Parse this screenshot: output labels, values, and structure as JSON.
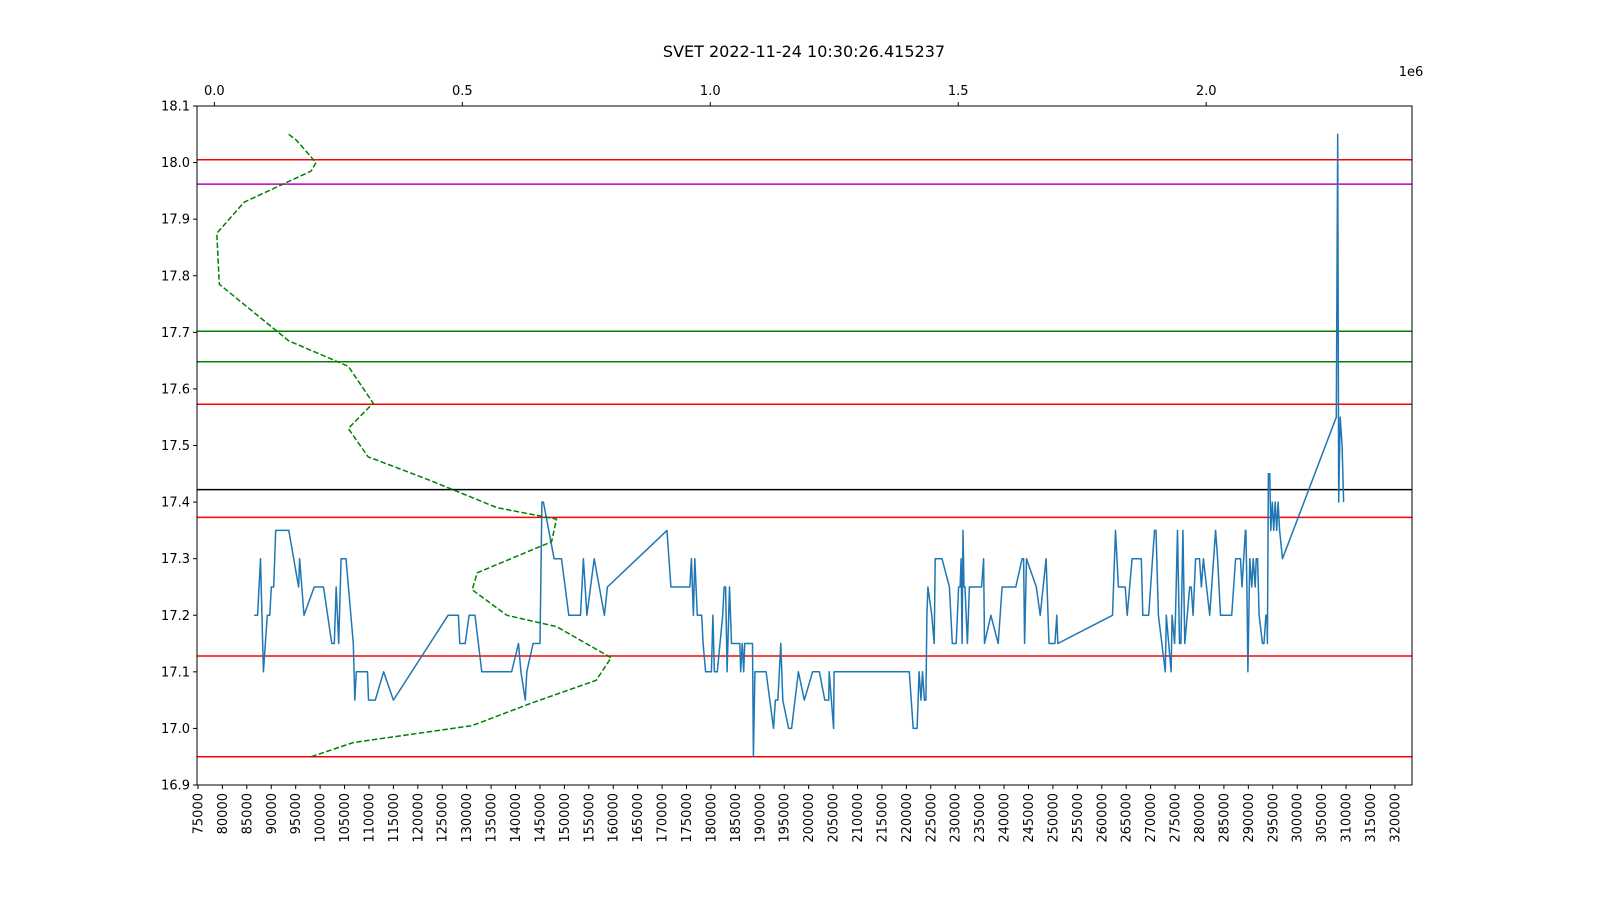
{
  "chart_data": {
    "type": "line",
    "title": "SVET 2022-11-24 10:30:26.415237",
    "xlabel": "",
    "ylabel": "",
    "ylim": [
      16.9,
      18.1
    ],
    "yticks": [
      "16.9",
      "17.0",
      "17.1",
      "17.2",
      "17.3",
      "17.4",
      "17.5",
      "17.6",
      "17.7",
      "17.8",
      "17.9",
      "18.0",
      "18.1"
    ],
    "xlim": [
      74800,
      323500
    ],
    "xticks": [
      "75000",
      "80000",
      "85000",
      "90000",
      "95000",
      "100000",
      "105000",
      "110000",
      "115000",
      "120000",
      "125000",
      "130000",
      "135000",
      "140000",
      "145000",
      "150000",
      "155000",
      "160000",
      "165000",
      "170000",
      "175000",
      "180000",
      "185000",
      "190000",
      "195000",
      "200000",
      "205000",
      "210000",
      "215000",
      "220000",
      "225000",
      "230000",
      "235000",
      "240000",
      "245000",
      "250000",
      "255000",
      "260000",
      "265000",
      "270000",
      "275000",
      "280000",
      "285000",
      "290000",
      "295000",
      "300000",
      "305000",
      "310000",
      "315000",
      "320000"
    ],
    "top_axis": {
      "xlim": [
        -35000,
        2415000
      ],
      "ticks": [
        "0.0",
        "0.5",
        "1.0",
        "1.5",
        "2.0"
      ],
      "tick_values": [
        0,
        500000,
        1000000,
        1500000,
        2000000
      ],
      "multiplier": "1e6"
    },
    "hlines": [
      {
        "y": 18.005,
        "color": "#ff0000"
      },
      {
        "y": 17.962,
        "color": "#bf00bf"
      },
      {
        "y": 17.702,
        "color": "#008000"
      },
      {
        "y": 17.648,
        "color": "#008000"
      },
      {
        "y": 17.573,
        "color": "#ff0000"
      },
      {
        "y": 17.422,
        "color": "#000000"
      },
      {
        "y": 17.373,
        "color": "#ff0000"
      },
      {
        "y": 17.128,
        "color": "#ff0000"
      },
      {
        "y": 16.95,
        "color": "#ff0000"
      }
    ],
    "series": [
      {
        "style": "solid",
        "color": "#1f77b4",
        "points": [
          [
            86500,
            17.2
          ],
          [
            87200,
            17.2
          ],
          [
            87800,
            17.3
          ],
          [
            88400,
            17.1
          ],
          [
            89200,
            17.2
          ],
          [
            89700,
            17.2
          ],
          [
            90000,
            17.25
          ],
          [
            90500,
            17.25
          ],
          [
            90900,
            17.35
          ],
          [
            93600,
            17.35
          ],
          [
            95600,
            17.25
          ],
          [
            95800,
            17.3
          ],
          [
            96700,
            17.2
          ],
          [
            98800,
            17.25
          ],
          [
            100700,
            17.25
          ],
          [
            102400,
            17.15
          ],
          [
            102900,
            17.15
          ],
          [
            103300,
            17.25
          ],
          [
            103800,
            17.15
          ],
          [
            104300,
            17.3
          ],
          [
            105300,
            17.3
          ],
          [
            106800,
            17.15
          ],
          [
            107100,
            17.05
          ],
          [
            107400,
            17.1
          ],
          [
            109700,
            17.1
          ],
          [
            109900,
            17.05
          ],
          [
            111300,
            17.05
          ],
          [
            113000,
            17.1
          ],
          [
            115000,
            17.05
          ],
          [
            126200,
            17.2
          ],
          [
            128300,
            17.2
          ],
          [
            128600,
            17.15
          ],
          [
            129700,
            17.15
          ],
          [
            130500,
            17.2
          ],
          [
            131700,
            17.2
          ],
          [
            133100,
            17.1
          ],
          [
            139200,
            17.1
          ],
          [
            140600,
            17.15
          ],
          [
            141100,
            17.1
          ],
          [
            142000,
            17.05
          ],
          [
            142300,
            17.1
          ],
          [
            143600,
            17.15
          ],
          [
            145000,
            17.15
          ],
          [
            145400,
            17.4
          ],
          [
            145700,
            17.4
          ],
          [
            147900,
            17.3
          ],
          [
            149400,
            17.3
          ],
          [
            150900,
            17.2
          ],
          [
            153300,
            17.2
          ],
          [
            153900,
            17.3
          ],
          [
            154600,
            17.2
          ],
          [
            156100,
            17.3
          ],
          [
            158200,
            17.2
          ],
          [
            158800,
            17.25
          ],
          [
            171000,
            17.35
          ],
          [
            171800,
            17.25
          ],
          [
            175700,
            17.25
          ],
          [
            176000,
            17.3
          ],
          [
            176400,
            17.2
          ],
          [
            176700,
            17.3
          ],
          [
            177200,
            17.2
          ],
          [
            178100,
            17.2
          ],
          [
            178400,
            17.15
          ],
          [
            178900,
            17.1
          ],
          [
            180100,
            17.1
          ],
          [
            180400,
            17.2
          ],
          [
            180700,
            17.1
          ],
          [
            181300,
            17.1
          ],
          [
            182400,
            17.2
          ],
          [
            182700,
            17.25
          ],
          [
            183000,
            17.25
          ],
          [
            183300,
            17.1
          ],
          [
            183800,
            17.25
          ],
          [
            184200,
            17.15
          ],
          [
            185900,
            17.15
          ],
          [
            186100,
            17.1
          ],
          [
            186400,
            17.15
          ],
          [
            186700,
            17.1
          ],
          [
            186900,
            17.15
          ],
          [
            188500,
            17.15
          ],
          [
            188700,
            16.95
          ],
          [
            189000,
            17.1
          ],
          [
            191300,
            17.1
          ],
          [
            192800,
            17.0
          ],
          [
            193200,
            17.05
          ],
          [
            193700,
            17.05
          ],
          [
            194300,
            17.15
          ],
          [
            194700,
            17.05
          ],
          [
            195900,
            17.0
          ],
          [
            196500,
            17.0
          ],
          [
            197900,
            17.1
          ],
          [
            199100,
            17.05
          ],
          [
            200800,
            17.1
          ],
          [
            202200,
            17.1
          ],
          [
            203300,
            17.05
          ],
          [
            204100,
            17.05
          ],
          [
            204200,
            17.1
          ],
          [
            205100,
            17.0
          ],
          [
            205200,
            17.1
          ],
          [
            220600,
            17.1
          ],
          [
            221400,
            17.0
          ],
          [
            222200,
            17.0
          ],
          [
            222600,
            17.1
          ],
          [
            223000,
            17.05
          ],
          [
            223300,
            17.1
          ],
          [
            223700,
            17.05
          ],
          [
            224000,
            17.05
          ],
          [
            224200,
            17.2
          ],
          [
            224400,
            17.25
          ],
          [
            225200,
            17.2
          ],
          [
            225700,
            17.15
          ],
          [
            225900,
            17.3
          ],
          [
            227300,
            17.3
          ],
          [
            228800,
            17.25
          ],
          [
            229400,
            17.15
          ],
          [
            230200,
            17.15
          ],
          [
            230700,
            17.25
          ],
          [
            231000,
            17.25
          ],
          [
            231200,
            17.3
          ],
          [
            231400,
            17.15
          ],
          [
            231600,
            17.35
          ],
          [
            231800,
            17.25
          ],
          [
            232000,
            17.25
          ],
          [
            232500,
            17.15
          ],
          [
            232900,
            17.25
          ],
          [
            235400,
            17.25
          ],
          [
            235800,
            17.3
          ],
          [
            236000,
            17.15
          ],
          [
            237300,
            17.2
          ],
          [
            238800,
            17.15
          ],
          [
            239600,
            17.25
          ],
          [
            242400,
            17.25
          ],
          [
            243700,
            17.3
          ],
          [
            244000,
            17.3
          ],
          [
            244200,
            17.15
          ],
          [
            244600,
            17.3
          ],
          [
            246600,
            17.25
          ],
          [
            247400,
            17.2
          ],
          [
            248600,
            17.3
          ],
          [
            249200,
            17.15
          ],
          [
            250400,
            17.15
          ],
          [
            250800,
            17.2
          ],
          [
            251000,
            17.15
          ],
          [
            262200,
            17.2
          ],
          [
            262800,
            17.35
          ],
          [
            263400,
            17.25
          ],
          [
            264800,
            17.25
          ],
          [
            265200,
            17.2
          ],
          [
            266200,
            17.3
          ],
          [
            268100,
            17.3
          ],
          [
            268400,
            17.2
          ],
          [
            269600,
            17.2
          ],
          [
            270000,
            17.25
          ],
          [
            270800,
            17.35
          ],
          [
            271100,
            17.35
          ],
          [
            271600,
            17.2
          ],
          [
            273000,
            17.1
          ],
          [
            273200,
            17.2
          ],
          [
            274200,
            17.1
          ],
          [
            274400,
            17.2
          ],
          [
            274900,
            17.15
          ],
          [
            275100,
            17.2
          ],
          [
            275500,
            17.35
          ],
          [
            275900,
            17.15
          ],
          [
            276200,
            17.15
          ],
          [
            276600,
            17.35
          ],
          [
            277000,
            17.15
          ],
          [
            278000,
            17.25
          ],
          [
            278300,
            17.25
          ],
          [
            278700,
            17.2
          ],
          [
            279200,
            17.3
          ],
          [
            280000,
            17.3
          ],
          [
            280400,
            17.25
          ],
          [
            280800,
            17.3
          ],
          [
            282100,
            17.2
          ],
          [
            283300,
            17.35
          ],
          [
            283700,
            17.3
          ],
          [
            284300,
            17.2
          ],
          [
            286600,
            17.2
          ],
          [
            287400,
            17.3
          ],
          [
            288400,
            17.3
          ],
          [
            288700,
            17.25
          ],
          [
            289400,
            17.35
          ],
          [
            289500,
            17.35
          ],
          [
            289700,
            17.25
          ],
          [
            289900,
            17.1
          ],
          [
            290300,
            17.3
          ],
          [
            290700,
            17.25
          ],
          [
            291000,
            17.3
          ],
          [
            291400,
            17.25
          ],
          [
            291600,
            17.3
          ],
          [
            291900,
            17.3
          ],
          [
            292200,
            17.2
          ],
          [
            292900,
            17.15
          ],
          [
            293200,
            17.15
          ],
          [
            293600,
            17.2
          ],
          [
            293800,
            17.2
          ],
          [
            293900,
            17.15
          ],
          [
            294100,
            17.45
          ],
          [
            294400,
            17.45
          ],
          [
            294600,
            17.35
          ],
          [
            294900,
            17.4
          ],
          [
            295200,
            17.35
          ],
          [
            295500,
            17.4
          ],
          [
            295800,
            17.35
          ],
          [
            296100,
            17.4
          ],
          [
            296400,
            17.35
          ],
          [
            297000,
            17.3
          ],
          [
            308000,
            17.55
          ],
          [
            308300,
            18.05
          ],
          [
            308500,
            17.4
          ],
          [
            308800,
            17.55
          ],
          [
            309200,
            17.5
          ],
          [
            309500,
            17.4
          ]
        ]
      },
      {
        "style": "dashed",
        "axis": "top",
        "color": "#008000",
        "points": [
          [
            150000,
            18.05
          ],
          [
            165000,
            18.04
          ],
          [
            205000,
            18.0
          ],
          [
            195000,
            17.985
          ],
          [
            60000,
            17.93
          ],
          [
            5000,
            17.875
          ],
          [
            10000,
            17.785
          ],
          [
            150000,
            17.685
          ],
          [
            270000,
            17.64
          ],
          [
            320000,
            17.575
          ],
          [
            270000,
            17.53
          ],
          [
            310000,
            17.48
          ],
          [
            430000,
            17.44
          ],
          [
            570000,
            17.39
          ],
          [
            690000,
            17.37
          ],
          [
            680000,
            17.33
          ],
          [
            530000,
            17.275
          ],
          [
            520000,
            17.245
          ],
          [
            590000,
            17.2
          ],
          [
            690000,
            17.18
          ],
          [
            800000,
            17.125
          ],
          [
            770000,
            17.085
          ],
          [
            640000,
            17.045
          ],
          [
            520000,
            17.005
          ],
          [
            280000,
            16.975
          ],
          [
            195000,
            16.95
          ]
        ]
      }
    ]
  }
}
